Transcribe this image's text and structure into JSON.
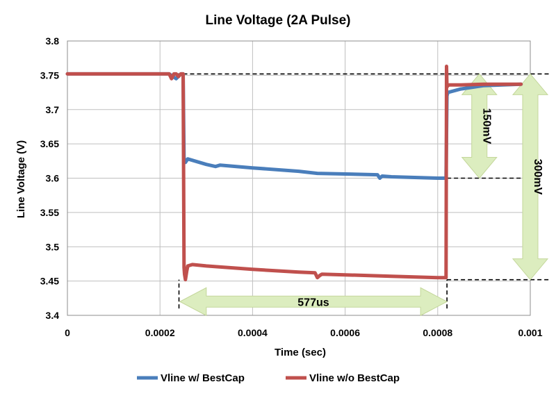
{
  "chart_data": {
    "type": "line",
    "title": "Line Voltage (2A Pulse)",
    "xlabel": "Time (sec)",
    "ylabel": "Line Voltage (V)",
    "xlim": [
      0,
      0.001
    ],
    "ylim": [
      3.4,
      3.8
    ],
    "x_ticks": [
      "0",
      "0.0002",
      "0.0004",
      "0.0006",
      "0.0008",
      "0.001"
    ],
    "y_ticks": [
      "3.4",
      "3.45",
      "3.5",
      "3.55",
      "3.6",
      "3.65",
      "3.7",
      "3.75",
      "3.8"
    ],
    "grid": true,
    "legend_position": "bottom",
    "series": [
      {
        "name": "Vline w/ BestCap",
        "color": "#4a7ebb",
        "x": [
          0,
          0.00022,
          0.000235,
          0.000245,
          0.00025,
          0.000252,
          0.000255,
          0.00026,
          0.0003,
          0.00032,
          0.00033,
          0.0004,
          0.0005,
          0.00054,
          0.00067,
          0.000675,
          0.00068,
          0.0007,
          0.00075,
          0.0008,
          0.000818,
          0.00082,
          0.000822,
          0.00085,
          0.0009,
          0.00098
        ],
        "y": [
          3.752,
          3.752,
          3.745,
          3.752,
          3.752,
          3.63,
          3.623,
          3.628,
          3.62,
          3.617,
          3.619,
          3.615,
          3.61,
          3.607,
          3.605,
          3.6,
          3.603,
          3.602,
          3.601,
          3.6,
          3.6,
          3.72,
          3.725,
          3.73,
          3.735,
          3.737
        ]
      },
      {
        "name": "Vline w/o BestCap",
        "color": "#c0504d",
        "x": [
          0,
          0.00022,
          0.000225,
          0.00023,
          0.000235,
          0.00024,
          0.000245,
          0.00025,
          0.000252,
          0.000253,
          0.000255,
          0.000258,
          0.00026,
          0.00027,
          0.0003,
          0.0004,
          0.0005,
          0.000535,
          0.00054,
          0.000545,
          0.00055,
          0.0006,
          0.0007,
          0.0008,
          0.000815,
          0.000818,
          0.000819,
          0.00082,
          0.000822,
          0.000825,
          0.00085,
          0.0009,
          0.00098
        ],
        "y": [
          3.752,
          3.752,
          3.745,
          3.752,
          3.752,
          3.748,
          3.752,
          3.752,
          3.47,
          3.46,
          3.452,
          3.465,
          3.472,
          3.474,
          3.472,
          3.467,
          3.463,
          3.462,
          3.455,
          3.458,
          3.46,
          3.459,
          3.457,
          3.455,
          3.455,
          3.455,
          3.763,
          3.733,
          3.735,
          3.736,
          3.736,
          3.737,
          3.737
        ]
      }
    ],
    "annotations": [
      {
        "text": "577us",
        "type": "horizontal-double-arrow",
        "x_range": [
          0.000243,
          0.00082
        ],
        "y": 3.42,
        "fill": "#dcedbf"
      },
      {
        "text": "150mV",
        "type": "vertical-double-arrow",
        "x": 0.00089,
        "y_range": [
          3.6,
          3.752
        ],
        "fill": "#dcedbf"
      },
      {
        "text": "300mV",
        "type": "vertical-double-arrow",
        "x": 0.001,
        "y_range": [
          3.452,
          3.752
        ],
        "fill": "#dcedbf"
      }
    ],
    "reference_lines": [
      {
        "type": "horizontal-dashed",
        "y": 3.752,
        "x_range": [
          0.000235,
          0.00104
        ]
      },
      {
        "type": "horizontal-dashed",
        "y": 3.6,
        "x_range": [
          0.00082,
          0.001
        ]
      },
      {
        "type": "horizontal-dashed",
        "y": 3.452,
        "x_range": [
          0.00082,
          0.00104
        ]
      },
      {
        "type": "vertical-dashed",
        "x": 0.000241,
        "y_range": [
          3.41,
          3.452
        ]
      },
      {
        "type": "vertical-dashed",
        "x": 0.00082,
        "y_range": [
          3.41,
          3.452
        ]
      }
    ]
  }
}
